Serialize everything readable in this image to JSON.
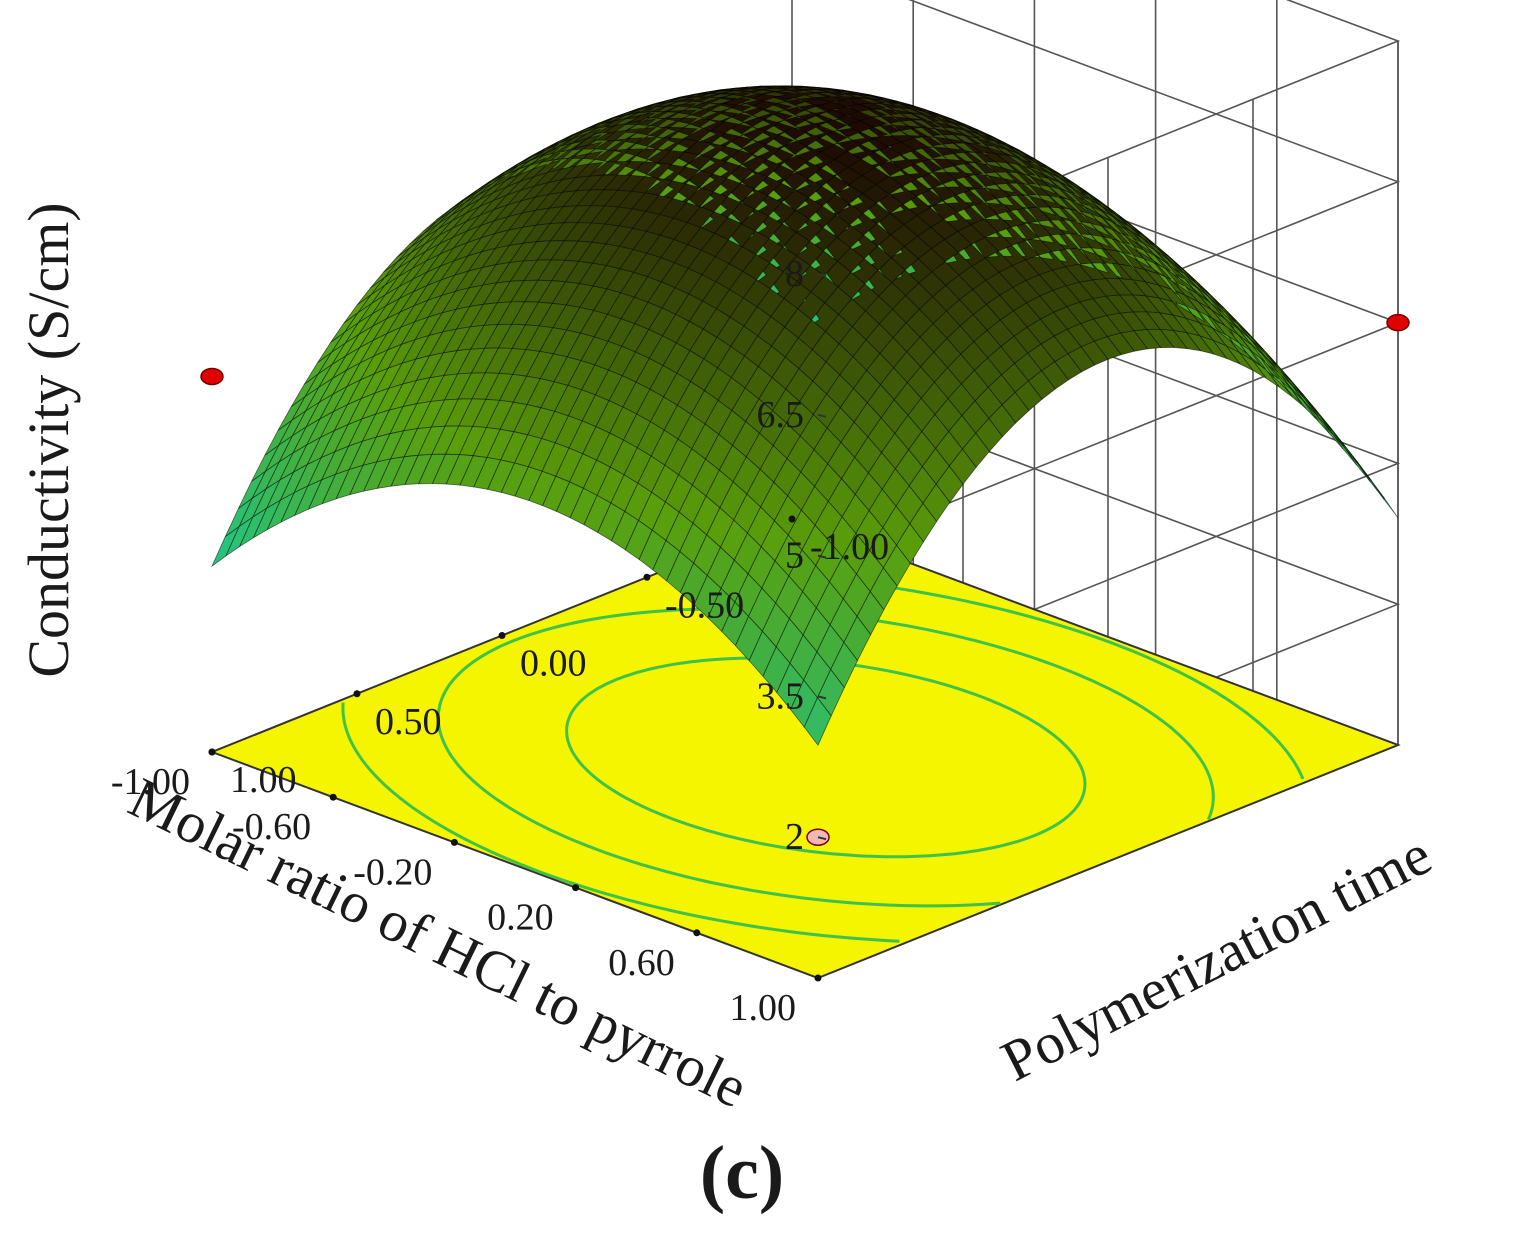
{
  "chart_data": {
    "type": "surface",
    "panel_label": "(c)",
    "zlabel": "Conductivity (S/cm)",
    "xlabel": "Molar ratio of HCl to pyrrole",
    "ylabel": "Polymerization time",
    "zlim": [
      0.5,
      8
    ],
    "zticks": [
      "2",
      "3.5",
      "5",
      "6.5",
      "8"
    ],
    "xlim": [
      -1,
      1
    ],
    "xticks": [
      "1.00",
      "0.60",
      "0.20",
      "-0.20",
      "-0.60",
      "-1.00"
    ],
    "ylim": [
      -1,
      1
    ],
    "yticks": [
      "-1.00",
      "-0.50",
      "0.00",
      "0.50",
      "1.00"
    ],
    "model": {
      "form": "z = b0 + b1*x + b2*y + b11*x^2 + b22*y^2",
      "b0": 7.3,
      "b1": 0.25,
      "b2": 0.03,
      "b11": -1.7,
      "b22": -2.9
    },
    "points": [
      {
        "x": 1.0,
        "y": 1.0,
        "z": 2.0
      },
      {
        "x": -1.0,
        "y": 1.0,
        "z": 4.5
      },
      {
        "x": 1.0,
        "y": -1.0,
        "z": 5.0
      },
      {
        "x": -1.0,
        "y": -1.0,
        "z": 7.5
      }
    ],
    "floor_contour_levels": [
      4.5,
      5.5,
      6.5
    ],
    "grid": true
  },
  "colors": {
    "floor": "#f5f500",
    "contour": "#3fc24a",
    "point": "#e00000",
    "point_below": "#f2b8b8",
    "surface_low": "#16d0a3",
    "surface_mid": "#5a9e0b",
    "surface_high": "#1d0a02"
  }
}
